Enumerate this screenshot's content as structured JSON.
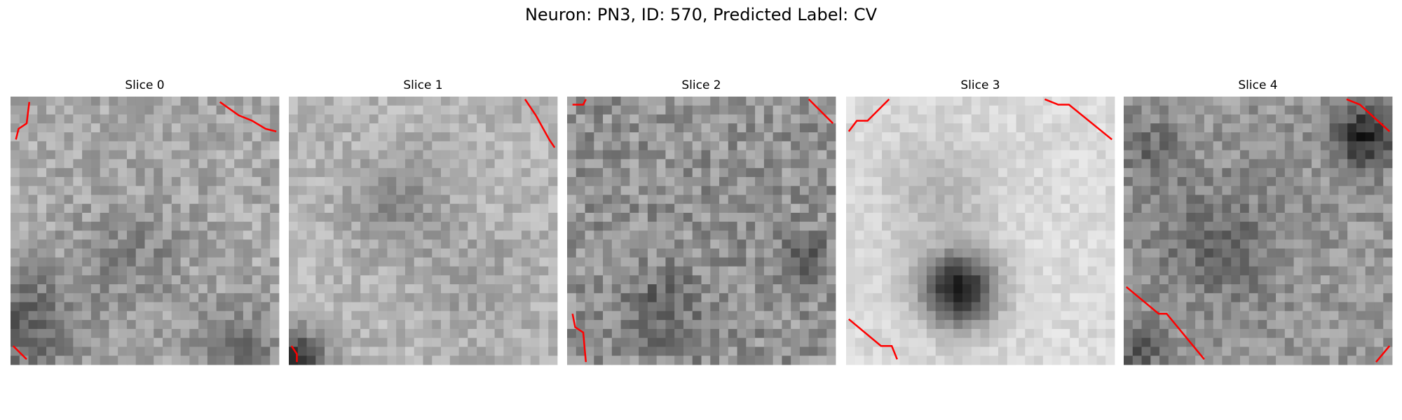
{
  "title": "Neuron: PN3, ID: 570, Predicted Label: CV",
  "panels": [
    {
      "label": "Slice 0"
    },
    {
      "label": "Slice 1"
    },
    {
      "label": "Slice 2"
    },
    {
      "label": "Slice 3"
    },
    {
      "label": "Slice 4"
    }
  ]
}
